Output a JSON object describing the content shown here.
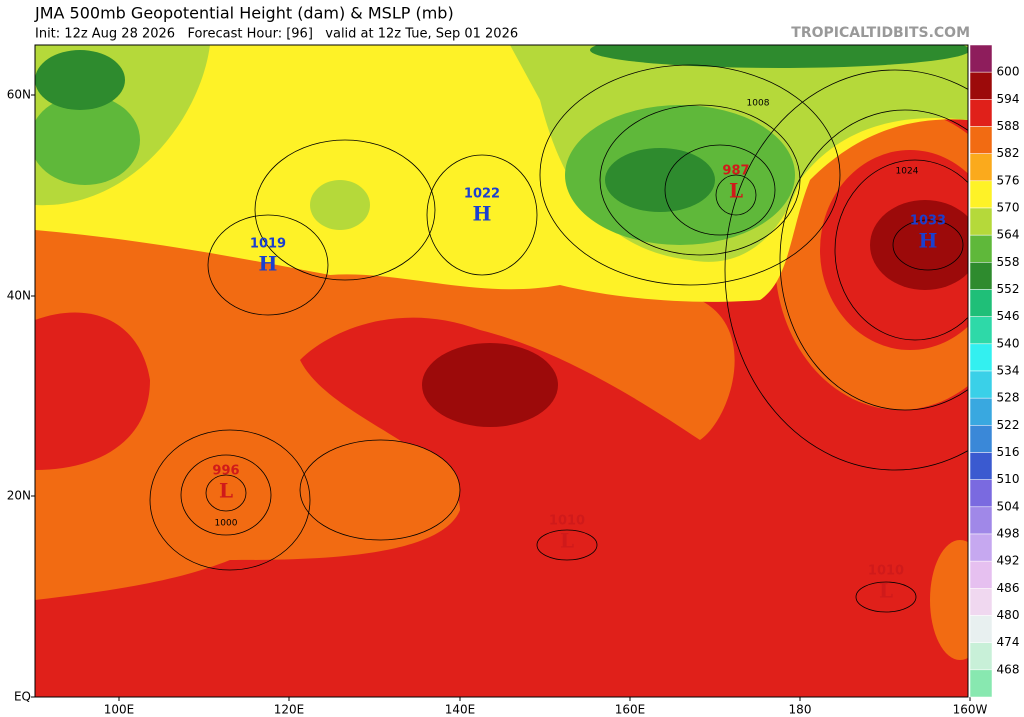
{
  "header": {
    "title": "JMA 500mb Geopotential Height (dam) & MSLP (mb)",
    "subtitle": "Init: 12z Aug 28 2026   Forecast Hour: [96]   valid at 12z Tue, Sep 01 2026",
    "source": "TROPICALTIDBITS.COM"
  },
  "map": {
    "lat_labels": [
      "60N",
      "40N",
      "20N",
      "EQ"
    ],
    "lon_labels": [
      "100E",
      "120E",
      "140E",
      "160E",
      "180",
      "160W"
    ],
    "centers": [
      {
        "kind": "H",
        "value": "1019"
      },
      {
        "kind": "H",
        "value": "1022"
      },
      {
        "kind": "H",
        "value": "1033"
      },
      {
        "kind": "L",
        "value": "987"
      },
      {
        "kind": "L",
        "value": "996"
      },
      {
        "kind": "L",
        "value": "1010"
      },
      {
        "kind": "L",
        "value": "1010"
      }
    ],
    "contour_labels": [
      "1008",
      "1024",
      "1000"
    ]
  },
  "colorbar": {
    "labels": [
      "600",
      "594",
      "588",
      "582",
      "576",
      "570",
      "564",
      "558",
      "552",
      "546",
      "540",
      "534",
      "528",
      "522",
      "516",
      "510",
      "504",
      "498",
      "492",
      "486",
      "480",
      "474",
      "468"
    ],
    "colors": [
      "#8e1d5c",
      "#9c0a0a",
      "#e0201a",
      "#f26b12",
      "#fbaa1c",
      "#fef227",
      "#b5d93a",
      "#5fb83a",
      "#2e8b2e",
      "#1fbf78",
      "#2ed9a8",
      "#33f0f0",
      "#3ad0e8",
      "#39a8e0",
      "#3a88d8",
      "#3a5ad0",
      "#7a6ae0",
      "#a088e8",
      "#c6a8f0",
      "#e6c0f0",
      "#f0d8f0",
      "#e8f0f0",
      "#c8f0d8",
      "#88e8b0"
    ]
  }
}
